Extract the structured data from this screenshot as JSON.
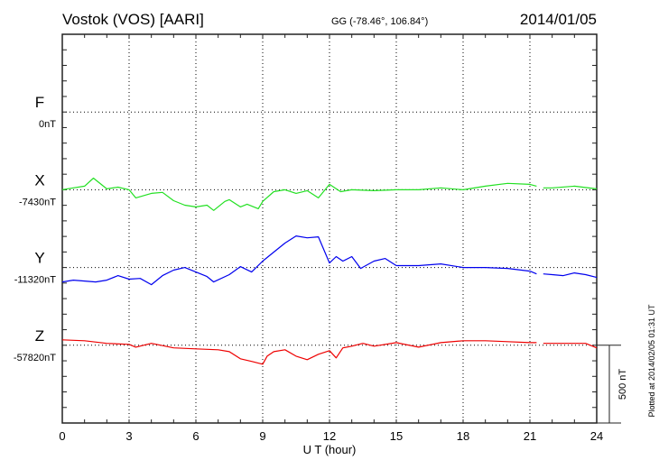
{
  "header": {
    "station": "Vostok (VOS)  [AARI]",
    "coords": "GG (-78.46°, 106.84°)",
    "date": "2014/01/05"
  },
  "footer": {
    "plotted_at": "Plotted at 2014/02/05 01:31  UT",
    "scale_label": "500 nT"
  },
  "colors": {
    "F": "#f5a800",
    "X": "#22e022",
    "Y": "#0000ee",
    "Z": "#ee0000",
    "axis": "#000000",
    "grid": "#000000"
  },
  "chart_data": {
    "type": "line",
    "title": "Vostok (VOS)  [AARI]",
    "xlabel": "U T (hour)",
    "xlim": [
      0,
      24
    ],
    "xticks": [
      "0",
      "3",
      "6",
      "9",
      "12",
      "15",
      "18",
      "21",
      "24"
    ],
    "scale_nT_per_division": 500,
    "grid": true,
    "series": [
      {
        "name": "F",
        "baseline_label": "0nT",
        "baseline": 0,
        "points": []
      },
      {
        "name": "X",
        "baseline_label": "-7430nT",
        "baseline": -7430,
        "points": [
          [
            0,
            -7430
          ],
          [
            0.5,
            -7418
          ],
          [
            1,
            -7407
          ],
          [
            1.4,
            -7355
          ],
          [
            2,
            -7424
          ],
          [
            2.5,
            -7413
          ],
          [
            3,
            -7430
          ],
          [
            3.3,
            -7482
          ],
          [
            4,
            -7453
          ],
          [
            4.5,
            -7447
          ],
          [
            5,
            -7500
          ],
          [
            5.5,
            -7529
          ],
          [
            6,
            -7540
          ],
          [
            6.5,
            -7529
          ],
          [
            6.8,
            -7563
          ],
          [
            7.3,
            -7505
          ],
          [
            7.5,
            -7494
          ],
          [
            8,
            -7540
          ],
          [
            8.3,
            -7523
          ],
          [
            8.8,
            -7552
          ],
          [
            9,
            -7505
          ],
          [
            9.5,
            -7442
          ],
          [
            10,
            -7430
          ],
          [
            10.5,
            -7453
          ],
          [
            11,
            -7436
          ],
          [
            11.5,
            -7482
          ],
          [
            12,
            -7395
          ],
          [
            12.5,
            -7442
          ],
          [
            13,
            -7430
          ],
          [
            14,
            -7436
          ],
          [
            15,
            -7430
          ],
          [
            16,
            -7430
          ],
          [
            17,
            -7418
          ],
          [
            18,
            -7430
          ],
          [
            19,
            -7407
          ],
          [
            20,
            -7389
          ],
          [
            21,
            -7395
          ],
          [
            21.3,
            -7407
          ],
          [
            21.45,
            null
          ],
          [
            21.6,
            -7418
          ],
          [
            22,
            -7418
          ],
          [
            23,
            -7407
          ],
          [
            24,
            -7424
          ]
        ]
      },
      {
        "name": "Y",
        "baseline_label": "-11320nT",
        "baseline": -11320,
        "points": [
          [
            0,
            -11413
          ],
          [
            0.5,
            -11401
          ],
          [
            1,
            -11407
          ],
          [
            1.5,
            -11413
          ],
          [
            2,
            -11401
          ],
          [
            2.5,
            -11372
          ],
          [
            3,
            -11395
          ],
          [
            3.5,
            -11390
          ],
          [
            4,
            -11430
          ],
          [
            4.5,
            -11372
          ],
          [
            5,
            -11337
          ],
          [
            5.5,
            -11320
          ],
          [
            6,
            -11349
          ],
          [
            6.5,
            -11378
          ],
          [
            6.8,
            -11413
          ],
          [
            7.5,
            -11366
          ],
          [
            8,
            -11314
          ],
          [
            8.5,
            -11349
          ],
          [
            9,
            -11279
          ],
          [
            9.5,
            -11221
          ],
          [
            10,
            -11163
          ],
          [
            10.5,
            -11117
          ],
          [
            11,
            -11129
          ],
          [
            11.5,
            -11123
          ],
          [
            12,
            -11291
          ],
          [
            12.3,
            -11250
          ],
          [
            12.6,
            -11279
          ],
          [
            13,
            -11250
          ],
          [
            13.4,
            -11326
          ],
          [
            14,
            -11279
          ],
          [
            14.5,
            -11262
          ],
          [
            15,
            -11308
          ],
          [
            16,
            -11308
          ],
          [
            17,
            -11297
          ],
          [
            18,
            -11320
          ],
          [
            19,
            -11320
          ],
          [
            20,
            -11326
          ],
          [
            21,
            -11343
          ],
          [
            21.3,
            -11361
          ],
          [
            21.45,
            null
          ],
          [
            21.6,
            -11361
          ],
          [
            22,
            -11366
          ],
          [
            22.5,
            -11372
          ],
          [
            23,
            -11355
          ],
          [
            23.5,
            -11366
          ],
          [
            24,
            -11384
          ]
        ]
      },
      {
        "name": "Z",
        "baseline_label": "-57820nT",
        "baseline": -57820,
        "points": [
          [
            0,
            -57785
          ],
          [
            1,
            -57791
          ],
          [
            2,
            -57808
          ],
          [
            3,
            -57814
          ],
          [
            3.3,
            -57832
          ],
          [
            4,
            -57808
          ],
          [
            5,
            -57837
          ],
          [
            6,
            -57843
          ],
          [
            7,
            -57849
          ],
          [
            7.5,
            -57861
          ],
          [
            8,
            -57907
          ],
          [
            8.5,
            -57924
          ],
          [
            9,
            -57942
          ],
          [
            9.2,
            -57890
          ],
          [
            9.5,
            -57861
          ],
          [
            10,
            -57849
          ],
          [
            10.5,
            -57890
          ],
          [
            11,
            -57913
          ],
          [
            11.5,
            -57878
          ],
          [
            12,
            -57855
          ],
          [
            12.3,
            -57901
          ],
          [
            12.6,
            -57837
          ],
          [
            13,
            -57826
          ],
          [
            13.5,
            -57808
          ],
          [
            14,
            -57826
          ],
          [
            15,
            -57803
          ],
          [
            16,
            -57832
          ],
          [
            17,
            -57803
          ],
          [
            18,
            -57791
          ],
          [
            19,
            -57791
          ],
          [
            20,
            -57797
          ],
          [
            21,
            -57803
          ],
          [
            21.3,
            -57803
          ],
          [
            21.45,
            null
          ],
          [
            21.6,
            -57808
          ],
          [
            22,
            -57808
          ],
          [
            23,
            -57808
          ],
          [
            23.5,
            -57808
          ],
          [
            24,
            -57837
          ]
        ]
      }
    ]
  }
}
